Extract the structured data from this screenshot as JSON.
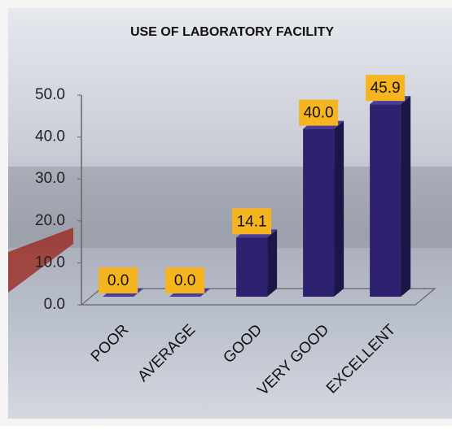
{
  "chart_data": {
    "type": "bar",
    "title": "USE OF LABORATORY FACILITY",
    "categories": [
      "POOR",
      "AVERAGE",
      "GOOD",
      "VERY GOOD",
      "EXCELLENT"
    ],
    "values": [
      0,
      0,
      14.1,
      40,
      45.9
    ],
    "value_labels": [
      "0.0",
      "0.0",
      "14.1",
      "40.0",
      "45.9"
    ],
    "color": "#2e2170",
    "ylim": [
      0,
      50
    ],
    "yticks": [
      {
        "value": 0,
        "label": "0.0"
      },
      {
        "value": 10,
        "label": "10.0"
      },
      {
        "value": 20,
        "label": "20.0"
      },
      {
        "value": 30,
        "label": "30.0"
      },
      {
        "value": 40,
        "label": "40.0"
      },
      {
        "value": 50,
        "label": "50.0"
      }
    ]
  }
}
